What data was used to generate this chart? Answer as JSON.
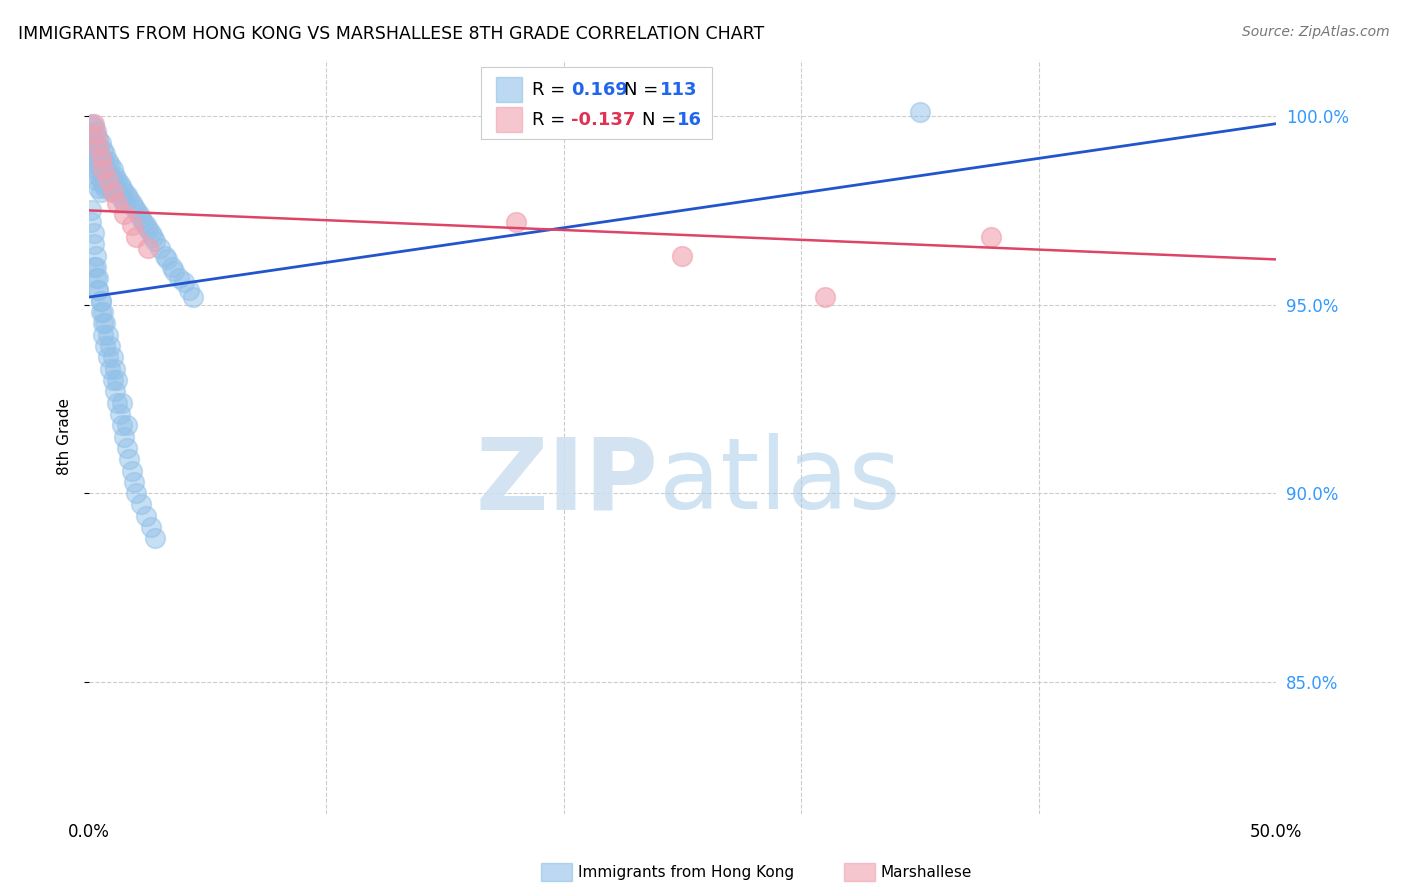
{
  "title": "IMMIGRANTS FROM HONG KONG VS MARSHALLESE 8TH GRADE CORRELATION CHART",
  "source": "Source: ZipAtlas.com",
  "ylabel": "8th Grade",
  "ytick_labels": [
    "85.0%",
    "90.0%",
    "95.0%",
    "100.0%"
  ],
  "ytick_values": [
    0.85,
    0.9,
    0.95,
    1.0
  ],
  "xlim": [
    0.0,
    0.5
  ],
  "ylim": [
    0.815,
    1.015
  ],
  "blue_color": "#90C0E8",
  "pink_color": "#F0A0B0",
  "trendline_blue": "#2255CC",
  "trendline_pink": "#DD4466",
  "blue_trend_x": [
    0.0,
    0.5
  ],
  "blue_trend_y": [
    0.952,
    0.998
  ],
  "pink_trend_x": [
    0.0,
    0.5
  ],
  "pink_trend_y": [
    0.975,
    0.962
  ],
  "blue_scatter_x": [
    0.001,
    0.001,
    0.002,
    0.002,
    0.002,
    0.002,
    0.003,
    0.003,
    0.003,
    0.003,
    0.003,
    0.004,
    0.004,
    0.004,
    0.004,
    0.004,
    0.005,
    0.005,
    0.005,
    0.005,
    0.005,
    0.006,
    0.006,
    0.006,
    0.006,
    0.007,
    0.007,
    0.007,
    0.007,
    0.008,
    0.008,
    0.008,
    0.009,
    0.009,
    0.009,
    0.01,
    0.01,
    0.01,
    0.011,
    0.011,
    0.012,
    0.012,
    0.013,
    0.013,
    0.014,
    0.014,
    0.015,
    0.015,
    0.016,
    0.017,
    0.018,
    0.019,
    0.02,
    0.021,
    0.022,
    0.023,
    0.024,
    0.025,
    0.026,
    0.027,
    0.028,
    0.03,
    0.032,
    0.033,
    0.035,
    0.036,
    0.038,
    0.04,
    0.042,
    0.044,
    0.001,
    0.001,
    0.002,
    0.002,
    0.003,
    0.003,
    0.004,
    0.004,
    0.005,
    0.005,
    0.006,
    0.006,
    0.007,
    0.008,
    0.009,
    0.01,
    0.011,
    0.012,
    0.013,
    0.014,
    0.015,
    0.016,
    0.017,
    0.018,
    0.019,
    0.02,
    0.022,
    0.024,
    0.026,
    0.028,
    0.002,
    0.003,
    0.004,
    0.005,
    0.006,
    0.007,
    0.008,
    0.009,
    0.01,
    0.011,
    0.012,
    0.014,
    0.016,
    0.35
  ],
  "blue_scatter_y": [
    0.998,
    0.995,
    0.997,
    0.993,
    0.991,
    0.988,
    0.996,
    0.992,
    0.989,
    0.986,
    0.983,
    0.994,
    0.99,
    0.987,
    0.984,
    0.981,
    0.993,
    0.989,
    0.986,
    0.983,
    0.98,
    0.991,
    0.988,
    0.985,
    0.982,
    0.99,
    0.987,
    0.984,
    0.981,
    0.988,
    0.985,
    0.982,
    0.987,
    0.984,
    0.981,
    0.986,
    0.983,
    0.98,
    0.984,
    0.981,
    0.983,
    0.98,
    0.982,
    0.979,
    0.981,
    0.978,
    0.98,
    0.977,
    0.979,
    0.978,
    0.977,
    0.976,
    0.975,
    0.974,
    0.973,
    0.972,
    0.971,
    0.97,
    0.969,
    0.968,
    0.967,
    0.965,
    0.963,
    0.962,
    0.96,
    0.959,
    0.957,
    0.956,
    0.954,
    0.952,
    0.975,
    0.972,
    0.969,
    0.966,
    0.963,
    0.96,
    0.957,
    0.954,
    0.951,
    0.948,
    0.945,
    0.942,
    0.939,
    0.936,
    0.933,
    0.93,
    0.927,
    0.924,
    0.921,
    0.918,
    0.915,
    0.912,
    0.909,
    0.906,
    0.903,
    0.9,
    0.897,
    0.894,
    0.891,
    0.888,
    0.96,
    0.957,
    0.954,
    0.951,
    0.948,
    0.945,
    0.942,
    0.939,
    0.936,
    0.933,
    0.93,
    0.924,
    0.918,
    1.001
  ],
  "pink_scatter_x": [
    0.002,
    0.003,
    0.004,
    0.005,
    0.006,
    0.008,
    0.01,
    0.012,
    0.015,
    0.018,
    0.02,
    0.025,
    0.18,
    0.25,
    0.31,
    0.38
  ],
  "pink_scatter_y": [
    0.998,
    0.995,
    0.992,
    0.989,
    0.986,
    0.983,
    0.98,
    0.977,
    0.974,
    0.971,
    0.968,
    0.965,
    0.972,
    0.963,
    0.952,
    0.968
  ]
}
